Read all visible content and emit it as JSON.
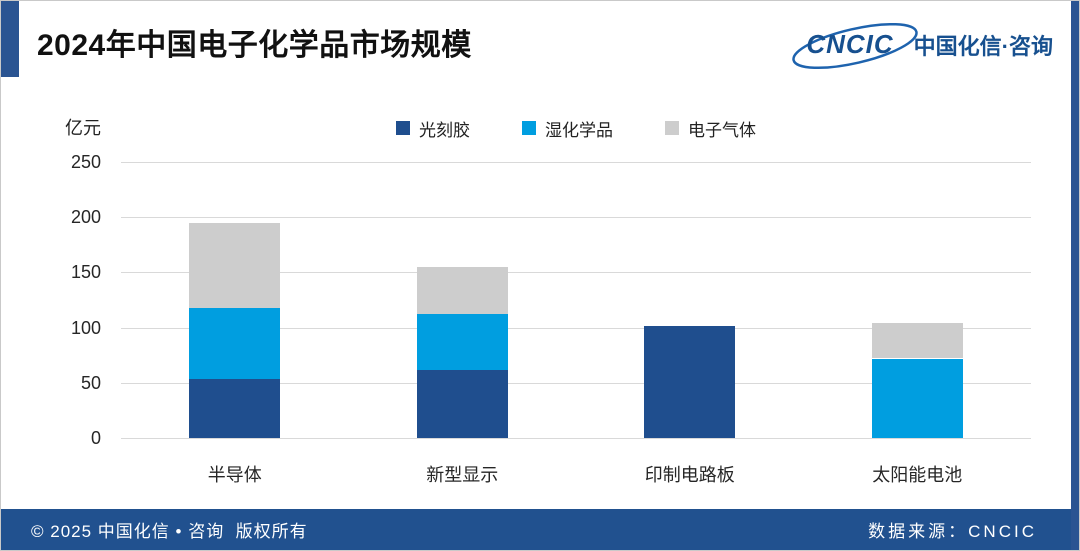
{
  "header": {
    "title": "2024年中国电子化学品市场规模",
    "logo": {
      "abbr": "CNCIC",
      "name": "中国化信·咨询"
    }
  },
  "footer": {
    "copyright": "© 2025 中国化信 • 咨询  版权所有",
    "source": "数据来源：CNCIC"
  },
  "colors": {
    "accent_blue": "#2A5492",
    "footer_blue": "#21518F",
    "logo_blue": "#17508F",
    "gridline": "#D9D9D9",
    "series_photoresist": "#1F4E8E",
    "series_wet_chemicals": "#009EE0",
    "series_electronic_gases": "#CDCDCD"
  },
  "chart_data": {
    "type": "bar",
    "stacked": true,
    "title": "2024年中国电子化学品市场规模",
    "unit_label": "亿元",
    "categories": [
      "半导体",
      "新型显示",
      "印制电路板",
      "太阳能电池"
    ],
    "series": [
      {
        "name": "光刻胶",
        "color": "#1F4E8E",
        "values": [
          53,
          62,
          101,
          0
        ]
      },
      {
        "name": "湿化学品",
        "color": "#009EE0",
        "values": [
          65,
          50,
          0,
          72
        ]
      },
      {
        "name": "电子气体",
        "color": "#CDCDCD",
        "values": [
          77,
          43,
          0,
          32
        ]
      }
    ],
    "stack_totals": [
      195,
      155,
      101,
      104
    ],
    "ylim": [
      0,
      250
    ],
    "yticks": [
      0,
      50,
      100,
      150,
      200,
      250
    ],
    "grid": true,
    "legend_position": "top-center"
  }
}
